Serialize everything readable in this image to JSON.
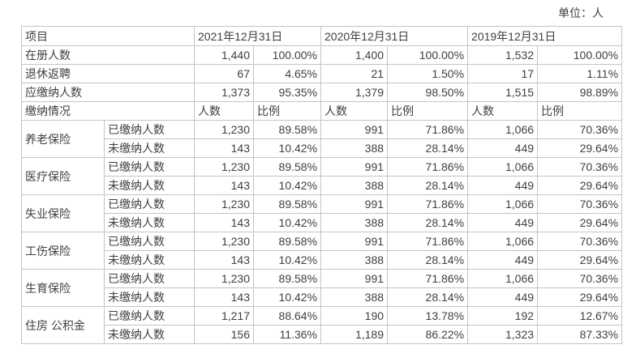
{
  "unit_label": "单位：人",
  "colors": {
    "border": "#c4c4c4",
    "text": "#404040",
    "background": "#ffffff"
  },
  "table": {
    "header": {
      "item_label": "项目",
      "periods": [
        "2021年12月31日",
        "2020年12月31日",
        "2019年12月31日"
      ]
    },
    "summary_rows": [
      {
        "label": "在册人数",
        "values": [
          [
            "1,440",
            "100.00%"
          ],
          [
            "1,400",
            "100.00%"
          ],
          [
            "1,532",
            "100.00%"
          ]
        ]
      },
      {
        "label": "退休返聘",
        "values": [
          [
            "67",
            "4.65%"
          ],
          [
            "21",
            "1.50%"
          ],
          [
            "17",
            "1.11%"
          ]
        ]
      },
      {
        "label": "应缴纳人数",
        "values": [
          [
            "1,373",
            "95.35%"
          ],
          [
            "1,379",
            "98.50%"
          ],
          [
            "1,515",
            "98.89%"
          ]
        ]
      }
    ],
    "section_row": {
      "label": "缴纳情况",
      "sub_headers": [
        "人数",
        "比例"
      ]
    },
    "row_labels": {
      "paid": "已缴纳人数",
      "unpaid": "未缴纳人数"
    },
    "insurance_groups": [
      {
        "name": "养老保险",
        "paid": [
          [
            "1,230",
            "89.58%"
          ],
          [
            "991",
            "71.86%"
          ],
          [
            "1,066",
            "70.36%"
          ]
        ],
        "unpaid": [
          [
            "143",
            "10.42%"
          ],
          [
            "388",
            "28.14%"
          ],
          [
            "449",
            "29.64%"
          ]
        ]
      },
      {
        "name": "医疗保险",
        "paid": [
          [
            "1,230",
            "89.58%"
          ],
          [
            "991",
            "71.86%"
          ],
          [
            "1,066",
            "70.36%"
          ]
        ],
        "unpaid": [
          [
            "143",
            "10.42%"
          ],
          [
            "388",
            "28.14%"
          ],
          [
            "449",
            "29.64%"
          ]
        ]
      },
      {
        "name": "失业保险",
        "paid": [
          [
            "1,230",
            "89.58%"
          ],
          [
            "991",
            "71.86%"
          ],
          [
            "1,066",
            "70.36%"
          ]
        ],
        "unpaid": [
          [
            "143",
            "10.42%"
          ],
          [
            "388",
            "28.14%"
          ],
          [
            "449",
            "29.64%"
          ]
        ]
      },
      {
        "name": "工伤保险",
        "paid": [
          [
            "1,230",
            "89.58%"
          ],
          [
            "991",
            "71.86%"
          ],
          [
            "1,066",
            "70.36%"
          ]
        ],
        "unpaid": [
          [
            "143",
            "10.42%"
          ],
          [
            "388",
            "28.14%"
          ],
          [
            "449",
            "29.64%"
          ]
        ]
      },
      {
        "name": "生育保险",
        "paid": [
          [
            "1,230",
            "89.58%"
          ],
          [
            "991",
            "71.86%"
          ],
          [
            "1,066",
            "70.36%"
          ]
        ],
        "unpaid": [
          [
            "143",
            "10.42%"
          ],
          [
            "388",
            "28.14%"
          ],
          [
            "449",
            "29.64%"
          ]
        ]
      },
      {
        "name": "住房 公积金",
        "paid": [
          [
            "1,217",
            "88.64%"
          ],
          [
            "190",
            "13.78%"
          ],
          [
            "192",
            "12.67%"
          ]
        ],
        "unpaid": [
          [
            "156",
            "11.36%"
          ],
          [
            "1,189",
            "86.22%"
          ],
          [
            "1,323",
            "87.33%"
          ]
        ]
      }
    ]
  }
}
